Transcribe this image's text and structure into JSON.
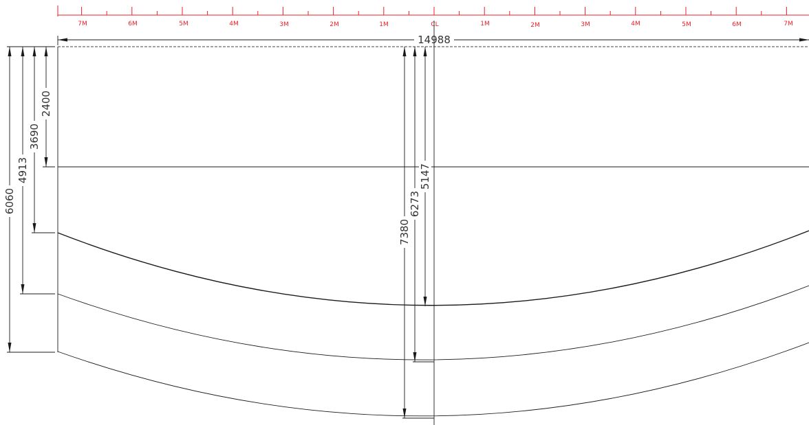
{
  "ruler": {
    "left_labels": [
      "7M",
      "6M",
      "5M",
      "4M",
      "3M",
      "2M",
      "1M"
    ],
    "center_label": "CL",
    "right_labels": [
      "1M",
      "2M",
      "3M",
      "4M",
      "5M",
      "6M",
      "7M"
    ],
    "color": "#e8202a"
  },
  "dimensions": {
    "overall_width": "14988",
    "left_verticals": [
      "2400",
      "3690",
      "4913",
      "6060"
    ],
    "center_verticals": [
      "5147",
      "6273",
      "7380"
    ]
  },
  "colors": {
    "line": "#1a1a1a",
    "text": "#333333"
  }
}
